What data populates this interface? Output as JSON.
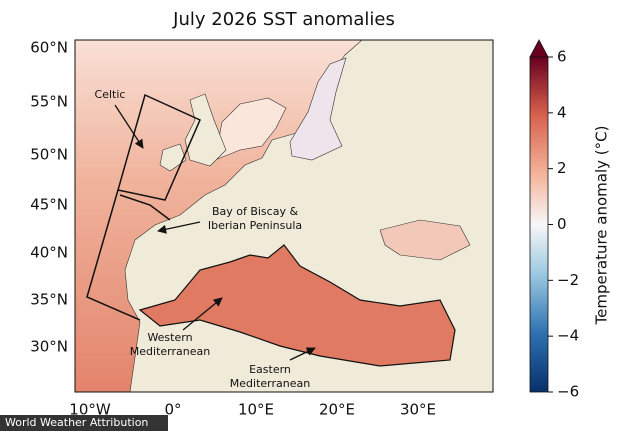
{
  "title": "July 2026 SST anomalies",
  "lat_labels": [
    "60°N",
    "55°N",
    "50°N",
    "45°N",
    "40°N",
    "35°N",
    "30°N"
  ],
  "lon_labels": [
    "10°W",
    "0°",
    "10°E",
    "20°E",
    "30°E"
  ],
  "regions": [
    {
      "lines": [
        "Celtic"
      ]
    },
    {
      "lines": [
        "Bay of Biscay &",
        "Iberian Peninsula"
      ]
    },
    {
      "lines": [
        "Western",
        "Mediterranean"
      ]
    },
    {
      "lines": [
        "Eastern",
        "Mediterranean"
      ]
    }
  ],
  "colorbar": {
    "label": "Temperature anomaly (°C)",
    "lim": [
      -6,
      6
    ],
    "ticks": [
      6,
      4,
      2,
      0,
      {
        "value": -2,
        "label": "−2"
      },
      {
        "value": -4,
        "label": "−4"
      },
      {
        "value": -6,
        "label": "−6"
      }
    ]
  },
  "credit": "World Weather Attribution"
}
